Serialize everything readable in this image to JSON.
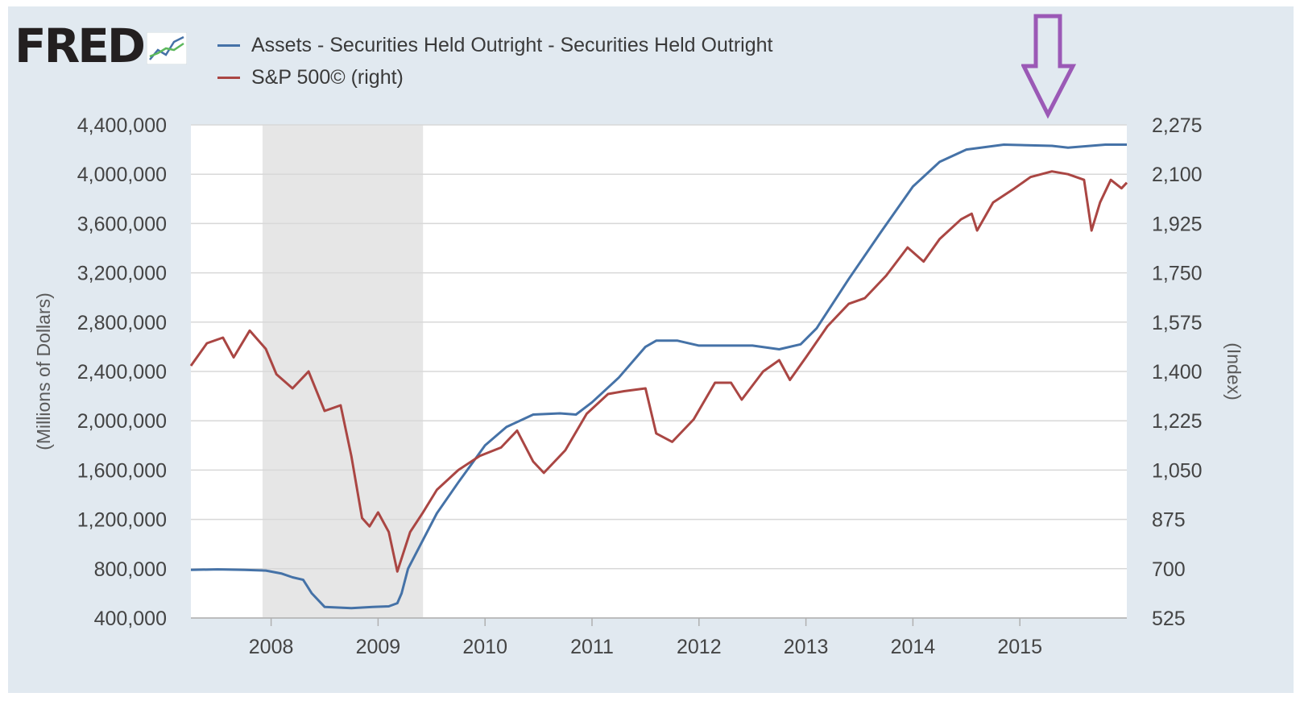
{
  "logo": {
    "text": "FRED"
  },
  "chart_data": {
    "type": "line",
    "xlim": [
      2007.25,
      2016.0
    ],
    "x_ticks": [
      "2008",
      "2009",
      "2010",
      "2011",
      "2012",
      "2013",
      "2014",
      "2015"
    ],
    "x_tick_values": [
      2008,
      2009,
      2010,
      2011,
      2012,
      2013,
      2014,
      2015
    ],
    "ylabel": "(Millions of Dollars)",
    "ylim": [
      400000,
      4400000
    ],
    "y_ticks": [
      "400,000",
      "800,000",
      "1,200,000",
      "1,600,000",
      "2,000,000",
      "2,400,000",
      "2,800,000",
      "3,200,000",
      "3,600,000",
      "4,000,000",
      "4,400,000"
    ],
    "ylabel_right": "(Index)",
    "ylim_right": [
      525,
      2275
    ],
    "y_ticks_right": [
      "525",
      "700",
      "875",
      "1,050",
      "1,225",
      "1,400",
      "1,575",
      "1,750",
      "1,925",
      "2,100",
      "2,275"
    ],
    "grid": true,
    "legend_position": "top-left",
    "recession_shading": [
      2007.92,
      2009.42
    ],
    "annotation": "arrow pointing down at 2015",
    "series": [
      {
        "name": "Assets - Securities Held Outright - Securities Held Outright",
        "axis": "left",
        "color": "#4572a7",
        "points": [
          [
            2007.25,
            790000
          ],
          [
            2007.5,
            795000
          ],
          [
            2007.75,
            790000
          ],
          [
            2007.95,
            785000
          ],
          [
            2008.1,
            760000
          ],
          [
            2008.2,
            730000
          ],
          [
            2008.3,
            710000
          ],
          [
            2008.38,
            600000
          ],
          [
            2008.5,
            490000
          ],
          [
            2008.75,
            480000
          ],
          [
            2008.95,
            490000
          ],
          [
            2009.1,
            495000
          ],
          [
            2009.18,
            520000
          ],
          [
            2009.22,
            600000
          ],
          [
            2009.28,
            800000
          ],
          [
            2009.4,
            1000000
          ],
          [
            2009.55,
            1250000
          ],
          [
            2009.75,
            1500000
          ],
          [
            2009.9,
            1680000
          ],
          [
            2010.0,
            1800000
          ],
          [
            2010.2,
            1950000
          ],
          [
            2010.45,
            2050000
          ],
          [
            2010.7,
            2060000
          ],
          [
            2010.85,
            2050000
          ],
          [
            2011.0,
            2150000
          ],
          [
            2011.25,
            2350000
          ],
          [
            2011.5,
            2600000
          ],
          [
            2011.6,
            2650000
          ],
          [
            2011.8,
            2650000
          ],
          [
            2012.0,
            2610000
          ],
          [
            2012.5,
            2610000
          ],
          [
            2012.75,
            2580000
          ],
          [
            2012.95,
            2620000
          ],
          [
            2013.1,
            2750000
          ],
          [
            2013.4,
            3150000
          ],
          [
            2013.7,
            3530000
          ],
          [
            2014.0,
            3900000
          ],
          [
            2014.25,
            4100000
          ],
          [
            2014.5,
            4200000
          ],
          [
            2014.85,
            4240000
          ],
          [
            2015.3,
            4230000
          ],
          [
            2015.45,
            4215000
          ],
          [
            2015.8,
            4240000
          ],
          [
            2016.0,
            4240000
          ]
        ]
      },
      {
        "name": "S&P 500© (right)",
        "axis": "right",
        "color": "#aa4643",
        "points": [
          [
            2007.25,
            1420
          ],
          [
            2007.4,
            1500
          ],
          [
            2007.55,
            1520
          ],
          [
            2007.65,
            1450
          ],
          [
            2007.8,
            1545
          ],
          [
            2007.95,
            1480
          ],
          [
            2008.05,
            1390
          ],
          [
            2008.2,
            1340
          ],
          [
            2008.35,
            1400
          ],
          [
            2008.5,
            1260
          ],
          [
            2008.65,
            1280
          ],
          [
            2008.75,
            1100
          ],
          [
            2008.85,
            880
          ],
          [
            2008.92,
            850
          ],
          [
            2009.0,
            900
          ],
          [
            2009.1,
            830
          ],
          [
            2009.18,
            690
          ],
          [
            2009.3,
            830
          ],
          [
            2009.42,
            900
          ],
          [
            2009.55,
            980
          ],
          [
            2009.75,
            1050
          ],
          [
            2009.95,
            1100
          ],
          [
            2010.15,
            1130
          ],
          [
            2010.3,
            1190
          ],
          [
            2010.45,
            1080
          ],
          [
            2010.55,
            1040
          ],
          [
            2010.75,
            1120
          ],
          [
            2010.95,
            1250
          ],
          [
            2011.15,
            1320
          ],
          [
            2011.3,
            1330
          ],
          [
            2011.5,
            1340
          ],
          [
            2011.6,
            1180
          ],
          [
            2011.75,
            1150
          ],
          [
            2011.95,
            1230
          ],
          [
            2012.15,
            1360
          ],
          [
            2012.3,
            1360
          ],
          [
            2012.4,
            1300
          ],
          [
            2012.6,
            1400
          ],
          [
            2012.75,
            1440
          ],
          [
            2012.85,
            1370
          ],
          [
            2013.0,
            1450
          ],
          [
            2013.2,
            1560
          ],
          [
            2013.4,
            1640
          ],
          [
            2013.55,
            1660
          ],
          [
            2013.75,
            1740
          ],
          [
            2013.95,
            1840
          ],
          [
            2014.1,
            1790
          ],
          [
            2014.25,
            1870
          ],
          [
            2014.45,
            1940
          ],
          [
            2014.55,
            1960
          ],
          [
            2014.6,
            1900
          ],
          [
            2014.75,
            2000
          ],
          [
            2014.95,
            2050
          ],
          [
            2015.1,
            2090
          ],
          [
            2015.3,
            2110
          ],
          [
            2015.45,
            2100
          ],
          [
            2015.6,
            2080
          ],
          [
            2015.67,
            1900
          ],
          [
            2015.75,
            2000
          ],
          [
            2015.85,
            2080
          ],
          [
            2015.95,
            2050
          ],
          [
            2016.0,
            2070
          ]
        ]
      }
    ]
  }
}
